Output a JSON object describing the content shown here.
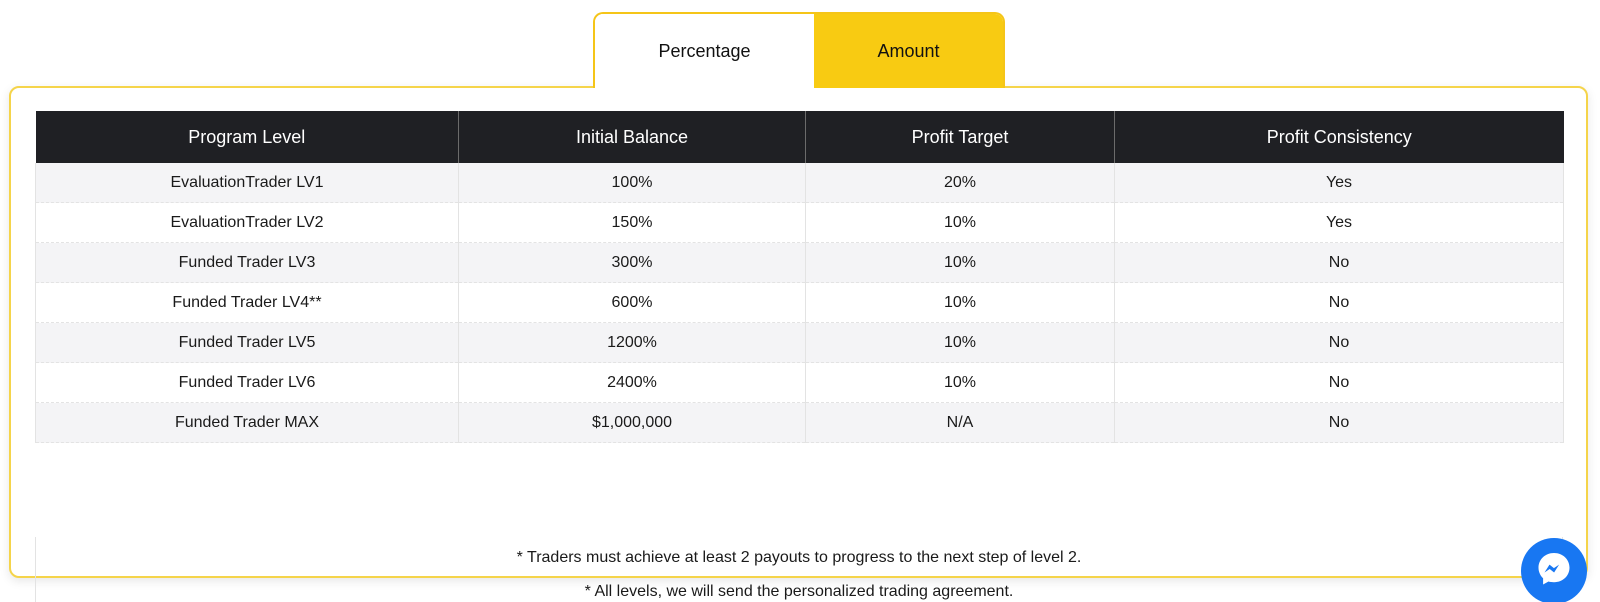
{
  "tabs": [
    {
      "label": "Percentage",
      "active": true
    },
    {
      "label": "Amount",
      "active": false
    }
  ],
  "table": {
    "headers": [
      "Program Level",
      "Initial Balance",
      "Profit Target",
      "Profit Consistency"
    ],
    "rows": [
      [
        "EvaluationTrader LV1",
        "100%",
        "20%",
        "Yes"
      ],
      [
        "EvaluationTrader LV2",
        "150%",
        "10%",
        "Yes"
      ],
      [
        "Funded Trader LV3",
        "300%",
        "10%",
        "No"
      ],
      [
        "Funded Trader LV4**",
        "600%",
        "10%",
        "No"
      ],
      [
        "Funded Trader LV5",
        "1200%",
        "10%",
        "No"
      ],
      [
        "Funded Trader LV6",
        "2400%",
        "10%",
        "No"
      ],
      [
        "Funded Trader MAX",
        "$1,000,000",
        "N/A",
        "No"
      ]
    ]
  },
  "notes": [
    "* Traders must achieve at least 2 payouts to progress to the next step of level 2.",
    "* All levels, we will send the personalized trading agreement."
  ],
  "colors": {
    "accent": "#f8cb12",
    "header_bg": "#1f2024",
    "messenger": "#1877f2"
  },
  "icons": {
    "chat": "messenger-icon"
  }
}
